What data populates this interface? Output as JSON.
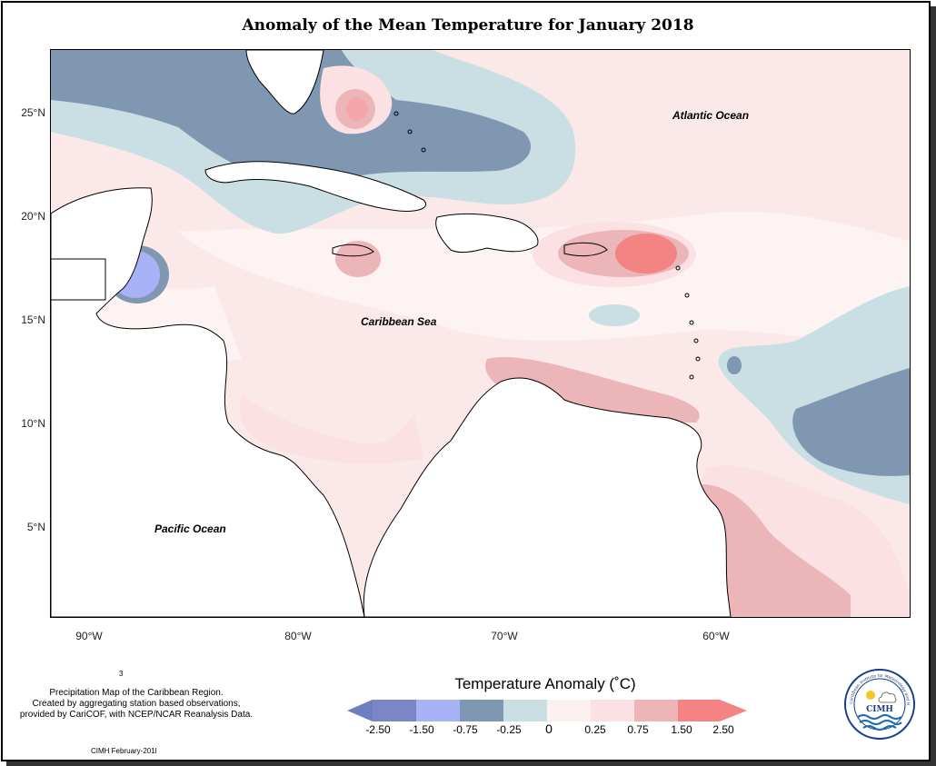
{
  "title": "Anomaly of the Mean Temperature for January 2018",
  "y_axis_ticks": [
    "25°N",
    "20°N",
    "15°N",
    "10°N",
    "5°N"
  ],
  "x_axis_ticks": [
    "90°W",
    "80°W",
    "70°W",
    "60°W"
  ],
  "ocean_labels": {
    "atlantic": "Atlantic Ocean",
    "caribbean": "Caribbean Sea",
    "pacific": "Pacific Ocean"
  },
  "legend": {
    "title": "Temperature Anomaly (˚C)",
    "tick_labels": [
      "-2.50",
      "-1.50",
      "-0.75",
      "-0.25",
      "0",
      "0.25",
      "0.75",
      "1.50",
      "2.50"
    ],
    "colors": [
      "#7b86c7",
      "#a8b2f7",
      "#7f97b1",
      "#c9dfe4",
      "#fdf0f0",
      "#fbe1e3",
      "#ecb6b9",
      "#f48384",
      "#f48384"
    ]
  },
  "credits": {
    "line1": "Precipitation Map of the Caribbean Region.",
    "line2": "Created by aggregating station based observations,",
    "line3": "provided by CariCOF, with NCEP/NCAR Reanalysis Data.",
    "stamp": "CIMH February-201l",
    "mark": "3"
  },
  "logo": {
    "text": "CIMH",
    "ring_text": "Caribbean Institute for Meteorology and Hydrology"
  }
}
